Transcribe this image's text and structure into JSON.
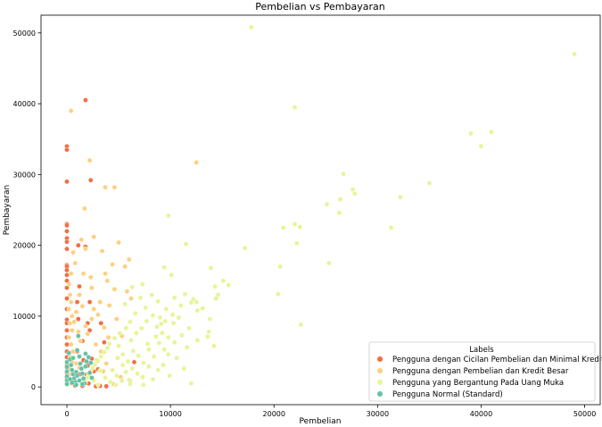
{
  "chart_data": {
    "type": "scatter",
    "title": "Pembelian vs Pembayaran",
    "xlabel": "Pembelian",
    "ylabel": "Pembayaran",
    "xlim": [
      -2500,
      51500
    ],
    "ylim": [
      -2500,
      52500
    ],
    "xticks": [
      0,
      10000,
      20000,
      30000,
      40000,
      50000
    ],
    "yticks": [
      0,
      10000,
      20000,
      30000,
      40000,
      50000
    ],
    "legend": {
      "title": "Labels",
      "placement": "lower-right"
    },
    "series": [
      {
        "name": "Pengguna dengan Cicilan Pembelian dan Minimal Kredit",
        "color": "#f46d43",
        "points": [
          [
            0,
            34000
          ],
          [
            0,
            33500
          ],
          [
            0,
            29000
          ],
          [
            0,
            23000
          ],
          [
            0,
            22800
          ],
          [
            0,
            22000
          ],
          [
            0,
            21000
          ],
          [
            0,
            20500
          ],
          [
            0,
            19500
          ],
          [
            0,
            17200
          ],
          [
            0,
            17000
          ],
          [
            0,
            16500
          ],
          [
            0,
            15800
          ],
          [
            0,
            15000
          ],
          [
            0,
            14000
          ],
          [
            0,
            12500
          ],
          [
            0,
            11000
          ],
          [
            0,
            9500
          ],
          [
            0,
            9000
          ],
          [
            0,
            8000
          ],
          [
            0,
            7000
          ],
          [
            0,
            6000
          ],
          [
            0,
            5000
          ],
          [
            0,
            4200
          ],
          [
            0,
            3000
          ],
          [
            0,
            2000
          ],
          [
            0,
            1200
          ],
          [
            0,
            500
          ],
          [
            1800,
            40500
          ],
          [
            2300,
            29200
          ],
          [
            1100,
            20000
          ],
          [
            1800,
            19800
          ],
          [
            1200,
            14200
          ],
          [
            1000,
            12000
          ],
          [
            2200,
            12000
          ],
          [
            1100,
            9600
          ],
          [
            2000,
            9000
          ],
          [
            2200,
            8000
          ],
          [
            1500,
            6500
          ],
          [
            1000,
            5000
          ],
          [
            1600,
            3800
          ],
          [
            2000,
            3000
          ],
          [
            1300,
            1800
          ],
          [
            500,
            1000
          ],
          [
            800,
            200
          ],
          [
            1500,
            150
          ],
          [
            2100,
            500
          ],
          [
            2800,
            100
          ],
          [
            3200,
            150
          ],
          [
            3800,
            100
          ],
          [
            3000,
            2500
          ],
          [
            3600,
            6300
          ],
          [
            3300,
            9000
          ],
          [
            6500,
            3500
          ],
          [
            1900,
            1700
          ],
          [
            2600,
            2200
          ],
          [
            2400,
            4000
          ]
        ]
      },
      {
        "name": "Pengguna dengan Pembelian dan Kredit Besar",
        "color": "#fdd07f",
        "points": [
          [
            400,
            39000
          ],
          [
            2200,
            32000
          ],
          [
            3700,
            28200
          ],
          [
            4600,
            28200
          ],
          [
            12500,
            31700
          ],
          [
            1700,
            25200
          ],
          [
            1400,
            20800
          ],
          [
            1800,
            19500
          ],
          [
            2600,
            21200
          ],
          [
            3400,
            19200
          ],
          [
            5000,
            20400
          ],
          [
            4400,
            17300
          ],
          [
            3700,
            16000
          ],
          [
            5600,
            17000
          ],
          [
            3900,
            15000
          ],
          [
            2400,
            14000
          ],
          [
            4600,
            13800
          ],
          [
            3200,
            12000
          ],
          [
            2600,
            11000
          ],
          [
            4100,
            11500
          ],
          [
            5800,
            13500
          ],
          [
            6200,
            12500
          ],
          [
            3000,
            10200
          ],
          [
            2400,
            9600
          ],
          [
            2000,
            7500
          ],
          [
            3600,
            8400
          ],
          [
            1300,
            6500
          ],
          [
            400,
            16000
          ],
          [
            200,
            14500
          ],
          [
            300,
            13000
          ],
          [
            400,
            12000
          ],
          [
            200,
            11000
          ],
          [
            500,
            10000
          ],
          [
            300,
            9000
          ],
          [
            500,
            8000
          ],
          [
            200,
            7000
          ],
          [
            400,
            6000
          ],
          [
            600,
            5000
          ],
          [
            300,
            4200
          ],
          [
            500,
            3500
          ],
          [
            200,
            2500
          ],
          [
            400,
            1800
          ],
          [
            200,
            1000
          ],
          [
            400,
            500
          ],
          [
            700,
            9200
          ],
          [
            900,
            10600
          ],
          [
            1100,
            7800
          ],
          [
            1500,
            11400
          ],
          [
            1800,
            8600
          ],
          [
            2800,
            6000
          ],
          [
            3300,
            5000
          ],
          [
            4000,
            7000
          ],
          [
            2300,
            15500
          ],
          [
            1200,
            13000
          ],
          [
            800,
            17500
          ],
          [
            1600,
            16000
          ],
          [
            600,
            19000
          ],
          [
            4800,
            9600
          ],
          [
            5300,
            7200
          ],
          [
            6000,
            18000
          ],
          [
            2900,
            3800
          ],
          [
            3500,
            2200
          ],
          [
            2500,
            1200
          ],
          [
            1800,
            700
          ],
          [
            1200,
            2700
          ],
          [
            900,
            3300
          ],
          [
            700,
            1300
          ],
          [
            4500,
            400
          ],
          [
            5200,
            1400
          ],
          [
            6100,
            900
          ],
          [
            3800,
            3300
          ]
        ]
      },
      {
        "name": "Pengguna yang Bergantung Pada Uang Muka",
        "color": "#e6f598",
        "points": [
          [
            17800,
            50800
          ],
          [
            49000,
            47000
          ],
          [
            22000,
            39500
          ],
          [
            39000,
            35800
          ],
          [
            40000,
            34000
          ],
          [
            41000,
            36000
          ],
          [
            26700,
            30100
          ],
          [
            27600,
            27900
          ],
          [
            27800,
            27300
          ],
          [
            32200,
            26800
          ],
          [
            35000,
            28800
          ],
          [
            26400,
            26500
          ],
          [
            25100,
            25800
          ],
          [
            26300,
            24600
          ],
          [
            20900,
            22500
          ],
          [
            22000,
            23000
          ],
          [
            22500,
            22600
          ],
          [
            31300,
            22500
          ],
          [
            22200,
            20300
          ],
          [
            17200,
            19600
          ],
          [
            20600,
            17000
          ],
          [
            25300,
            17500
          ],
          [
            9800,
            24200
          ],
          [
            11500,
            20200
          ],
          [
            13900,
            16800
          ],
          [
            15100,
            15000
          ],
          [
            15600,
            14400
          ],
          [
            14300,
            14200
          ],
          [
            20400,
            13100
          ],
          [
            14400,
            12500
          ],
          [
            12500,
            12000
          ],
          [
            11000,
            11500
          ],
          [
            10200,
            10200
          ],
          [
            9500,
            9300
          ],
          [
            8700,
            8500
          ],
          [
            9200,
            7600
          ],
          [
            10800,
            9800
          ],
          [
            11800,
            8300
          ],
          [
            13700,
            7800
          ],
          [
            12600,
            10800
          ],
          [
            14200,
            5800
          ],
          [
            22600,
            8800
          ],
          [
            10100,
            15800
          ],
          [
            9400,
            16900
          ],
          [
            8200,
            13000
          ],
          [
            7100,
            12600
          ],
          [
            7600,
            11200
          ],
          [
            6600,
            10400
          ],
          [
            6100,
            9200
          ],
          [
            5700,
            8300
          ],
          [
            5100,
            7600
          ],
          [
            4600,
            6900
          ],
          [
            4100,
            6100
          ],
          [
            3900,
            5500
          ],
          [
            3600,
            4900
          ],
          [
            3300,
            4300
          ],
          [
            3000,
            3700
          ],
          [
            2700,
            3200
          ],
          [
            2500,
            2700
          ],
          [
            2300,
            2200
          ],
          [
            2100,
            1700
          ],
          [
            1900,
            1300
          ],
          [
            1700,
            900
          ],
          [
            1500,
            600
          ],
          [
            4900,
            4100
          ],
          [
            5400,
            4600
          ],
          [
            5900,
            3600
          ],
          [
            6400,
            5100
          ],
          [
            6900,
            4400
          ],
          [
            7400,
            3400
          ],
          [
            7900,
            5300
          ],
          [
            8400,
            4300
          ],
          [
            8900,
            6200
          ],
          [
            9400,
            5300
          ],
          [
            9800,
            7000
          ],
          [
            10400,
            6300
          ],
          [
            11100,
            7300
          ],
          [
            6300,
            2600
          ],
          [
            6800,
            1900
          ],
          [
            7300,
            1400
          ],
          [
            7900,
            2900
          ],
          [
            8300,
            1100
          ],
          [
            8800,
            2400
          ],
          [
            9300,
            3100
          ],
          [
            9900,
            1600
          ],
          [
            4400,
            2400
          ],
          [
            4800,
            1600
          ],
          [
            5300,
            900
          ],
          [
            5700,
            2100
          ],
          [
            6200,
            6600
          ],
          [
            6700,
            7600
          ],
          [
            7200,
            8300
          ],
          [
            7700,
            9300
          ],
          [
            8300,
            10100
          ],
          [
            5600,
            11700
          ],
          [
            6300,
            14100
          ],
          [
            7300,
            14500
          ],
          [
            8800,
            12100
          ],
          [
            9600,
            11000
          ],
          [
            10400,
            12600
          ],
          [
            11400,
            13100
          ],
          [
            12200,
            12400
          ],
          [
            13100,
            11100
          ],
          [
            12000,
            500
          ],
          [
            7400,
            300
          ],
          [
            6100,
            400
          ],
          [
            3200,
            2300
          ],
          [
            3700,
            1300
          ],
          [
            4200,
            700
          ],
          [
            4700,
            300
          ],
          [
            2600,
            900
          ],
          [
            3000,
            300
          ],
          [
            10600,
            4100
          ],
          [
            11600,
            5600
          ],
          [
            12600,
            6600
          ],
          [
            13600,
            7100
          ],
          [
            13800,
            9600
          ],
          [
            7800,
            6100
          ],
          [
            8600,
            7100
          ],
          [
            9100,
            8900
          ],
          [
            5000,
            5800
          ],
          [
            5400,
            3100
          ],
          [
            9800,
            4600
          ],
          [
            12000,
            11900
          ],
          [
            14600,
            13000
          ],
          [
            6000,
            1000
          ],
          [
            11300,
            2600
          ],
          [
            10300,
            9000
          ],
          [
            9000,
            9800
          ]
        ]
      },
      {
        "name": "Pengguna Normal (Standard)",
        "color": "#66c2a5",
        "points": [
          [
            0,
            3500
          ],
          [
            0,
            2800
          ],
          [
            0,
            2200
          ],
          [
            0,
            1500
          ],
          [
            0,
            900
          ],
          [
            0,
            400
          ],
          [
            200,
            4800
          ],
          [
            300,
            3900
          ],
          [
            400,
            3100
          ],
          [
            500,
            2400
          ],
          [
            600,
            1800
          ],
          [
            700,
            1200
          ],
          [
            800,
            700
          ],
          [
            900,
            300
          ],
          [
            1000,
            5200
          ],
          [
            1100,
            7200
          ],
          [
            1200,
            4300
          ],
          [
            1300,
            3300
          ],
          [
            1400,
            2600
          ],
          [
            1500,
            1900
          ],
          [
            1600,
            1200
          ],
          [
            1700,
            500
          ],
          [
            1800,
            2900
          ],
          [
            1900,
            3600
          ],
          [
            2100,
            4200
          ],
          [
            2200,
            2000
          ],
          [
            2400,
            1300
          ],
          [
            600,
            4100
          ],
          [
            900,
            2100
          ],
          [
            1200,
            900
          ],
          [
            300,
            1100
          ],
          [
            500,
            600
          ],
          [
            1500,
            400
          ],
          [
            1000,
            1600
          ],
          [
            2300,
            3400
          ],
          [
            1800,
            4700
          ]
        ]
      }
    ]
  }
}
